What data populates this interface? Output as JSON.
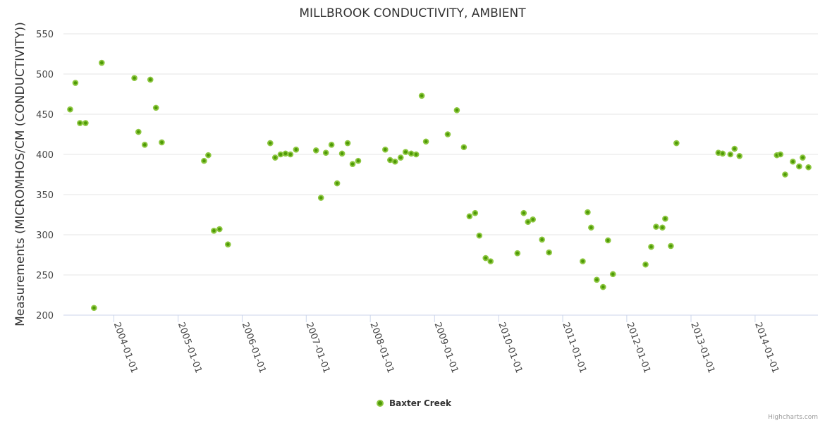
{
  "chart_data": {
    "type": "scatter",
    "title": "MILLBROOK CONDUCTIVITY, AMBIENT",
    "xlabel": "",
    "ylabel": "Measurements (MICROMHOS/CM (CONDUCTIVITY))",
    "ylim": [
      200,
      550
    ],
    "yticks": [
      200,
      250,
      300,
      350,
      400,
      450,
      500,
      550
    ],
    "xlim": [
      "2003-03-20",
      "2014-12-25"
    ],
    "xticks": [
      "2004-01-01",
      "2005-01-01",
      "2006-01-01",
      "2007-01-01",
      "2008-01-01",
      "2009-01-01",
      "2010-01-01",
      "2011-01-01",
      "2012-01-01",
      "2013-01-01",
      "2014-01-01"
    ],
    "grid": "horizontal",
    "legend_position": "bottom-center",
    "colors": {
      "marker_fill": "#4e9a06",
      "marker_ring": "#8cc63f"
    },
    "series": [
      {
        "name": "Baxter Creek",
        "points": [
          [
            "2003-04-27",
            456
          ],
          [
            "2003-05-27",
            489
          ],
          [
            "2003-06-22",
            439
          ],
          [
            "2003-07-24",
            439
          ],
          [
            "2003-09-10",
            209
          ],
          [
            "2003-10-24",
            514
          ],
          [
            "2004-04-27",
            495
          ],
          [
            "2004-05-20",
            428
          ],
          [
            "2004-06-25",
            412
          ],
          [
            "2004-07-27",
            493
          ],
          [
            "2004-08-28",
            458
          ],
          [
            "2004-09-30",
            415
          ],
          [
            "2005-05-29",
            392
          ],
          [
            "2005-06-22",
            399
          ],
          [
            "2005-07-24",
            305
          ],
          [
            "2005-08-25",
            307
          ],
          [
            "2005-10-12",
            288
          ],
          [
            "2006-06-10",
            414
          ],
          [
            "2006-07-08",
            396
          ],
          [
            "2006-08-08",
            400
          ],
          [
            "2006-09-05",
            401
          ],
          [
            "2006-10-03",
            400
          ],
          [
            "2006-11-04",
            406
          ],
          [
            "2007-02-26",
            405
          ],
          [
            "2007-03-26",
            346
          ],
          [
            "2007-04-23",
            402
          ],
          [
            "2007-05-25",
            412
          ],
          [
            "2007-06-26",
            364
          ],
          [
            "2007-07-24",
            401
          ],
          [
            "2007-08-25",
            414
          ],
          [
            "2007-09-22",
            388
          ],
          [
            "2007-10-24",
            392
          ],
          [
            "2008-03-26",
            406
          ],
          [
            "2008-04-23",
            393
          ],
          [
            "2008-05-21",
            391
          ],
          [
            "2008-06-22",
            396
          ],
          [
            "2008-07-20",
            403
          ],
          [
            "2008-08-21",
            401
          ],
          [
            "2008-09-18",
            400
          ],
          [
            "2008-10-20",
            473
          ],
          [
            "2008-11-13",
            416
          ],
          [
            "2009-03-17",
            425
          ],
          [
            "2009-05-08",
            455
          ],
          [
            "2009-06-17",
            409
          ],
          [
            "2009-07-19",
            323
          ],
          [
            "2009-08-20",
            327
          ],
          [
            "2009-09-13",
            299
          ],
          [
            "2009-10-19",
            271
          ],
          [
            "2009-11-16",
            267
          ],
          [
            "2010-04-18",
            277
          ],
          [
            "2010-05-24",
            327
          ],
          [
            "2010-06-17",
            316
          ],
          [
            "2010-07-15",
            319
          ],
          [
            "2010-09-05",
            294
          ],
          [
            "2010-10-15",
            278
          ],
          [
            "2011-04-25",
            267
          ],
          [
            "2011-05-23",
            328
          ],
          [
            "2011-06-12",
            309
          ],
          [
            "2011-07-14",
            244
          ],
          [
            "2011-08-19",
            235
          ],
          [
            "2011-09-16",
            293
          ],
          [
            "2011-10-14",
            251
          ],
          [
            "2012-04-17",
            263
          ],
          [
            "2012-05-19",
            285
          ],
          [
            "2012-06-16",
            310
          ],
          [
            "2012-07-22",
            309
          ],
          [
            "2012-08-07",
            320
          ],
          [
            "2012-09-08",
            286
          ],
          [
            "2012-10-10",
            414
          ],
          [
            "2013-06-06",
            402
          ],
          [
            "2013-06-30",
            401
          ],
          [
            "2013-08-13",
            400
          ],
          [
            "2013-09-06",
            407
          ],
          [
            "2013-10-04",
            398
          ],
          [
            "2014-05-05",
            399
          ],
          [
            "2014-05-25",
            400
          ],
          [
            "2014-06-21",
            375
          ],
          [
            "2014-08-04",
            391
          ],
          [
            "2014-09-09",
            385
          ],
          [
            "2014-09-29",
            396
          ],
          [
            "2014-11-01",
            384
          ]
        ]
      }
    ]
  },
  "credits": "Highcharts.com"
}
